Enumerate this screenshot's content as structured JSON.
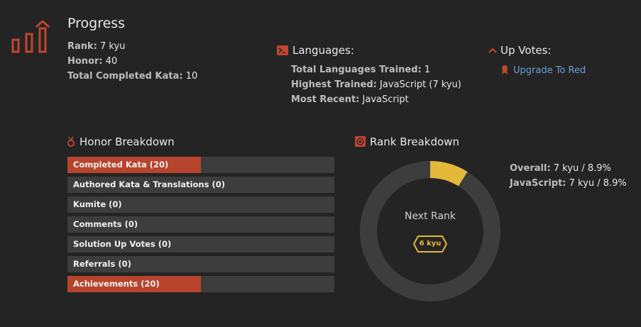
{
  "progress": {
    "title": "Progress",
    "rank_label": "Rank:",
    "rank_value": "7 kyu",
    "honor_label": "Honor:",
    "honor_value": "40",
    "completed_label": "Total Completed Kata:",
    "completed_value": "10"
  },
  "languages": {
    "title": "Languages:",
    "trained_label": "Total Languages Trained:",
    "trained_value": "1",
    "highest_label": "Highest Trained:",
    "highest_value": "JavaScript (7 kyu)",
    "recent_label": "Most Recent:",
    "recent_value": "JavaScript"
  },
  "upvotes": {
    "title": "Up Votes:",
    "link_label": "Upgrade To Red"
  },
  "honor_breakdown": {
    "title": "Honor Breakdown",
    "items": [
      {
        "label": "Completed Kata (20)",
        "fill_fraction": 0.5
      },
      {
        "label": "Authored Kata & Translations (0)",
        "fill_fraction": 0
      },
      {
        "label": "Kumite (0)",
        "fill_fraction": 0
      },
      {
        "label": "Comments (0)",
        "fill_fraction": 0
      },
      {
        "label": "Solution Up Votes (0)",
        "fill_fraction": 0
      },
      {
        "label": "Referrals (0)",
        "fill_fraction": 0
      },
      {
        "label": "Achievements (20)",
        "fill_fraction": 0.5
      }
    ]
  },
  "rank_breakdown": {
    "title": "Rank Breakdown",
    "center_text": "Next Rank",
    "next_rank_badge": "6 kyu",
    "progress_fraction": 0.089,
    "overall_label": "Overall:",
    "overall_value": "7 kyu / 8.9%",
    "js_label": "JavaScript:",
    "js_value": "7 kyu / 8.9%"
  },
  "colors": {
    "accent_red": "#b7442d",
    "rank_yellow": "#e4b83a",
    "track": "#3d3d3d",
    "link_blue": "#6f9fd8"
  }
}
